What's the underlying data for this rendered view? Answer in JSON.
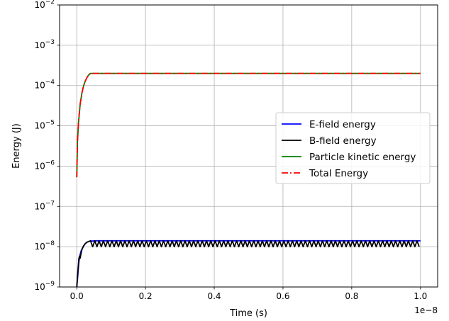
{
  "chart_data": {
    "type": "line",
    "xlabel": "Time (s)",
    "ylabel": "Energy (J)",
    "x_offset_text": "1e−8",
    "x_scale_exponent": -8,
    "xlim": [
      -5e-10,
      1.05e-08
    ],
    "ylim": [
      1e-09,
      0.01
    ],
    "yscale": "log",
    "grid": true,
    "legend_position": "center-right",
    "x_ticks": [
      0.0,
      2e-09,
      4e-09,
      6e-09,
      8e-09,
      1e-08
    ],
    "x_tick_labels": [
      "0.0",
      "0.2",
      "0.4",
      "0.6",
      "0.8",
      "1.0"
    ],
    "y_ticks": [
      1e-09,
      1e-08,
      1e-07,
      1e-06,
      1e-05,
      0.0001,
      0.001,
      0.01
    ],
    "y_tick_labels": [
      {
        "base": "10",
        "exp": "−9"
      },
      {
        "base": "10",
        "exp": "−8"
      },
      {
        "base": "10",
        "exp": "−7"
      },
      {
        "base": "10",
        "exp": "−6"
      },
      {
        "base": "10",
        "exp": "−5"
      },
      {
        "base": "10",
        "exp": "−4"
      },
      {
        "base": "10",
        "exp": "−3"
      },
      {
        "base": "10",
        "exp": "−2"
      }
    ],
    "series": [
      {
        "name": "E-field energy",
        "color": "#0000ff",
        "dash": "solid",
        "x": [
          0.0,
          2e-11,
          4e-11,
          6e-11,
          8e-11,
          1e-10,
          1.3e-10,
          1.6e-10,
          2e-10,
          2.5e-10,
          3e-10,
          3.5e-10,
          4e-10,
          6e-10,
          1e-09,
          2e-09,
          4e-09,
          6e-09,
          8e-09,
          1e-08
        ],
        "y": [
          1e-09,
          1.5e-09,
          2.5e-09,
          4e-09,
          5.5e-09,
          6.5e-09,
          8e-09,
          9e-09,
          1.05e-08,
          1.2e-08,
          1.3e-08,
          1.35e-08,
          1.38e-08,
          1.4e-08,
          1.4e-08,
          1.4e-08,
          1.4e-08,
          1.4e-08,
          1.4e-08,
          1.4e-08
        ]
      },
      {
        "name": "B-field energy",
        "color": "#000000",
        "dash": "solid",
        "oscillation": {
          "start": 4e-10,
          "period": 1.25e-10,
          "high": 1.4e-08,
          "low": 1e-08
        },
        "x": [
          0.0,
          2e-11,
          4e-11,
          6e-11,
          8e-11,
          1e-10,
          1.2e-10,
          1.5e-10,
          2e-10,
          2.5e-10,
          3e-10,
          3.5e-10,
          4e-10
        ],
        "y": [
          1e-09,
          1.8e-09,
          3e-09,
          5e-09,
          5.8e-09,
          5.2e-09,
          6.5e-09,
          8.5e-09,
          1.05e-08,
          1.2e-08,
          1.3e-08,
          1.35e-08,
          1.4e-08
        ]
      },
      {
        "name": "Particle kinetic energy",
        "color": "#008000",
        "dash": "solid",
        "x": [
          0.0,
          2e-11,
          5e-11,
          1e-10,
          1.5e-10,
          2e-10,
          2.5e-10,
          3e-10,
          3.5e-10,
          4e-10,
          5e-10,
          1e-09,
          2e-09,
          4e-09,
          6e-09,
          8e-09,
          1e-08
        ],
        "y": [
          5.3e-07,
          4e-06,
          1.2e-05,
          3.5e-05,
          6.5e-05,
          0.0001,
          0.00013,
          0.00016,
          0.000185,
          0.0002,
          0.0002,
          0.0002,
          0.0002,
          0.0002,
          0.0002,
          0.0002,
          0.0002
        ]
      },
      {
        "name": "Total Energy",
        "color": "#ff0000",
        "dash": "dashdot",
        "x": [
          0.0,
          2e-11,
          5e-11,
          1e-10,
          1.5e-10,
          2e-10,
          2.5e-10,
          3e-10,
          3.5e-10,
          4e-10,
          5e-10,
          1e-09,
          2e-09,
          4e-09,
          6e-09,
          8e-09,
          1e-08
        ],
        "y": [
          5.3e-07,
          4e-06,
          1.2e-05,
          3.5e-05,
          6.5e-05,
          0.0001,
          0.00013,
          0.00016,
          0.000185,
          0.0002,
          0.0002,
          0.0002,
          0.0002,
          0.0002,
          0.0002,
          0.0002,
          0.0002
        ]
      }
    ]
  }
}
